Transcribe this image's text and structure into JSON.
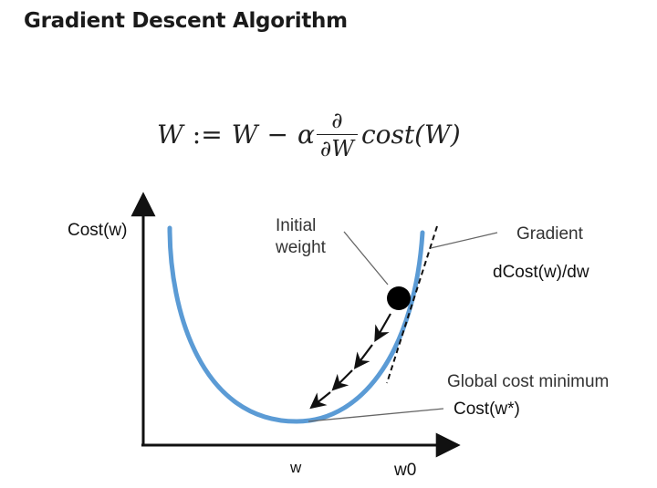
{
  "header": {
    "title": "Gradient Descent Algorithm"
  },
  "formula": {
    "lhs": "W",
    "assign": ":=",
    "rhs_w": "W",
    "minus": "−",
    "alpha": "α",
    "partial_num": "∂",
    "partial_den": "∂W",
    "cost_fn": "cost(W)"
  },
  "diagram": {
    "y_axis_label": "Cost(w)",
    "initial_weight_label_line1": "Initial",
    "initial_weight_label_line2": "weight",
    "gradient_label": "Gradient",
    "gradient_formula": "dCost(w)/dw",
    "global_min_label": "Global cost minimum",
    "global_min_value": "Cost(w*)",
    "x_tick_w": "w",
    "x_tick_w0": "w0",
    "colors": {
      "curve": "#5b9bd5",
      "ink": "#111111",
      "leader": "#777777"
    }
  }
}
